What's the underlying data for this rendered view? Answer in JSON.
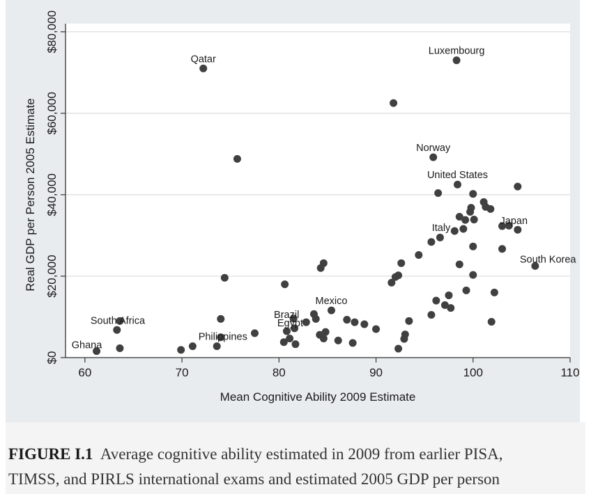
{
  "chart_data": {
    "type": "scatter",
    "title": "",
    "xlabel": "Mean Cognitive Ability 2009 Estimate",
    "ylabel": "Real GDP per Person 2005 Estimate",
    "xlim": [
      58,
      110
    ],
    "ylim": [
      0,
      82000
    ],
    "x_ticks": [
      60,
      70,
      80,
      90,
      100,
      110
    ],
    "x_tick_labels": [
      "60",
      "70",
      "80",
      "90",
      "100",
      "110"
    ],
    "y_ticks": [
      0,
      20000,
      40000,
      60000,
      80000
    ],
    "y_tick_labels": [
      "$0",
      "$20,000",
      "$40,000",
      "$60,000",
      "$80,000"
    ],
    "grid": "horizontal",
    "legend": "none",
    "marker_color": "#404040",
    "points": [
      {
        "x": 72.2,
        "y": 71000,
        "label": "Qatar"
      },
      {
        "x": 98.3,
        "y": 73000,
        "label": "Luxembourg"
      },
      {
        "x": 91.8,
        "y": 62500
      },
      {
        "x": 95.9,
        "y": 49200,
        "label": "Norway"
      },
      {
        "x": 75.7,
        "y": 48800
      },
      {
        "x": 98.4,
        "y": 42500,
        "label": "United States"
      },
      {
        "x": 104.6,
        "y": 42000
      },
      {
        "x": 96.4,
        "y": 40400
      },
      {
        "x": 100.0,
        "y": 40200
      },
      {
        "x": 101.1,
        "y": 38200
      },
      {
        "x": 101.3,
        "y": 37000
      },
      {
        "x": 101.8,
        "y": 36500
      },
      {
        "x": 99.8,
        "y": 36800
      },
      {
        "x": 99.7,
        "y": 35800
      },
      {
        "x": 98.6,
        "y": 34600
      },
      {
        "x": 99.2,
        "y": 33800
      },
      {
        "x": 100.1,
        "y": 33900
      },
      {
        "x": 103.0,
        "y": 32300,
        "label": "Japan"
      },
      {
        "x": 103.7,
        "y": 32400
      },
      {
        "x": 104.6,
        "y": 31400
      },
      {
        "x": 99.0,
        "y": 31600
      },
      {
        "x": 98.1,
        "y": 31100,
        "label": "Italy"
      },
      {
        "x": 96.6,
        "y": 29500
      },
      {
        "x": 95.7,
        "y": 28400
      },
      {
        "x": 100.0,
        "y": 27300
      },
      {
        "x": 103.0,
        "y": 26700
      },
      {
        "x": 94.4,
        "y": 25200
      },
      {
        "x": 106.4,
        "y": 22500,
        "label": "South Korea"
      },
      {
        "x": 98.6,
        "y": 22900
      },
      {
        "x": 92.6,
        "y": 23200
      },
      {
        "x": 84.6,
        "y": 23200
      },
      {
        "x": 84.3,
        "y": 22000
      },
      {
        "x": 92.3,
        "y": 20200
      },
      {
        "x": 92.0,
        "y": 19800
      },
      {
        "x": 100.0,
        "y": 20300
      },
      {
        "x": 74.4,
        "y": 19600
      },
      {
        "x": 80.6,
        "y": 18000
      },
      {
        "x": 91.6,
        "y": 18400
      },
      {
        "x": 99.3,
        "y": 16500
      },
      {
        "x": 102.2,
        "y": 16000
      },
      {
        "x": 97.5,
        "y": 15300
      },
      {
        "x": 96.2,
        "y": 14000
      },
      {
        "x": 97.1,
        "y": 12900
      },
      {
        "x": 97.7,
        "y": 12200
      },
      {
        "x": 85.4,
        "y": 11600,
        "label": "Mexico"
      },
      {
        "x": 83.6,
        "y": 10700
      },
      {
        "x": 95.7,
        "y": 10500
      },
      {
        "x": 81.5,
        "y": 9600,
        "label": "Brazil"
      },
      {
        "x": 83.8,
        "y": 9500
      },
      {
        "x": 74.0,
        "y": 9500
      },
      {
        "x": 63.6,
        "y": 9000,
        "label": "South Africa"
      },
      {
        "x": 87.0,
        "y": 9300
      },
      {
        "x": 87.8,
        "y": 8700
      },
      {
        "x": 93.4,
        "y": 9000
      },
      {
        "x": 101.9,
        "y": 8800
      },
      {
        "x": 82.8,
        "y": 8700
      },
      {
        "x": 88.8,
        "y": 8200
      },
      {
        "x": 81.6,
        "y": 7200
      },
      {
        "x": 90.0,
        "y": 7000
      },
      {
        "x": 63.3,
        "y": 6800
      },
      {
        "x": 80.8,
        "y": 6500,
        "label": "Egypt"
      },
      {
        "x": 84.8,
        "y": 6300
      },
      {
        "x": 77.5,
        "y": 6000
      },
      {
        "x": 84.2,
        "y": 5600
      },
      {
        "x": 93.0,
        "y": 5700
      },
      {
        "x": 81.1,
        "y": 4700
      },
      {
        "x": 84.6,
        "y": 4700
      },
      {
        "x": 80.5,
        "y": 3800
      },
      {
        "x": 81.7,
        "y": 3300
      },
      {
        "x": 86.1,
        "y": 4200
      },
      {
        "x": 87.6,
        "y": 3600
      },
      {
        "x": 92.9,
        "y": 4600
      },
      {
        "x": 74.0,
        "y": 5000,
        "label": "Philippines"
      },
      {
        "x": 71.1,
        "y": 2800
      },
      {
        "x": 73.6,
        "y": 2800
      },
      {
        "x": 63.6,
        "y": 2300
      },
      {
        "x": 69.9,
        "y": 1900
      },
      {
        "x": 61.2,
        "y": 1600,
        "label": "Ghana"
      },
      {
        "x": 92.3,
        "y": 2200
      }
    ]
  },
  "caption": {
    "lead": "FIGURE I.1",
    "line1": "Average cognitive ability estimated in 2009 from earlier PISA,",
    "line2": "TIMSS, and PIRLS international exams and estimated 2005 GDP per person"
  }
}
